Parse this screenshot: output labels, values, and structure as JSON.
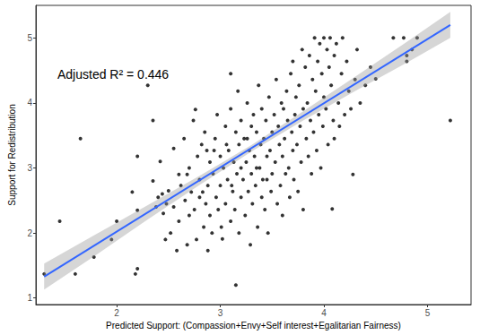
{
  "chart_data": {
    "type": "scatter",
    "annotation": "Adjusted R² = 0.446",
    "x_label": "Predicted Support: (Compassion+Envy+Self interest+Egalitarian Fairness)",
    "y_label": "Support for Redistribution",
    "xlim": [
      1.22,
      5.42
    ],
    "xticks": [
      2,
      3,
      4,
      5
    ],
    "ylim": [
      0.9,
      5.5
    ],
    "yticks": [
      1,
      2,
      3,
      4,
      5
    ],
    "grid": false,
    "series": [
      {
        "type": "scatter",
        "color": "#000000",
        "marker": "circle",
        "x": [
          1.3,
          1.45,
          1.6,
          1.65,
          1.78,
          1.95,
          2.0,
          2.15,
          2.2,
          2.2,
          2.18,
          2.2,
          2.3,
          2.35,
          2.38,
          2.35,
          2.4,
          2.42,
          2.45,
          2.48,
          2.5,
          2.52,
          2.55,
          2.55,
          2.58,
          2.6,
          2.6,
          2.62,
          2.44,
          2.47,
          2.65,
          2.66,
          2.68,
          2.7,
          2.7,
          2.72,
          2.74,
          2.75,
          2.77,
          2.78,
          2.8,
          2.8,
          2.82,
          2.84,
          2.85,
          2.86,
          2.88,
          2.88,
          2.9,
          2.9,
          2.68,
          2.76,
          2.83,
          2.87,
          2.92,
          2.93,
          2.95,
          2.96,
          2.97,
          2.98,
          3.0,
          3.0,
          3.02,
          3.03,
          3.05,
          3.05,
          3.07,
          3.08,
          3.1,
          3.1,
          3.1,
          3.12,
          3.13,
          3.14,
          3.15,
          3.15,
          3.16,
          3.18,
          3.18,
          3.2,
          3.2,
          3.2,
          2.94,
          3.01,
          3.06,
          3.11,
          3.17,
          3.22,
          3.23,
          3.24,
          3.25,
          3.26,
          3.27,
          3.28,
          3.29,
          3.3,
          3.3,
          3.31,
          3.32,
          3.33,
          3.34,
          3.35,
          3.36,
          3.37,
          3.38,
          3.39,
          3.4,
          3.4,
          3.41,
          3.42,
          3.43,
          3.44,
          3.45,
          3.46,
          3.47,
          3.48,
          3.49,
          3.5,
          3.5,
          3.26,
          3.35,
          3.45,
          3.52,
          3.53,
          3.54,
          3.55,
          3.56,
          3.57,
          3.58,
          3.59,
          3.6,
          3.6,
          3.61,
          3.62,
          3.63,
          3.64,
          3.65,
          3.66,
          3.67,
          3.68,
          3.69,
          3.7,
          3.7,
          3.71,
          3.72,
          3.73,
          3.74,
          3.75,
          3.76,
          3.77,
          3.78,
          3.79,
          3.8,
          3.8,
          3.82,
          3.83,
          3.84,
          3.85,
          3.86,
          3.87,
          3.88,
          3.89,
          3.9,
          3.91,
          3.92,
          3.93,
          3.94,
          3.95,
          3.96,
          3.97,
          3.98,
          3.99,
          4.0,
          4.0,
          4.02,
          4.03,
          4.04,
          4.05,
          4.06,
          4.07,
          4.08,
          4.09,
          4.1,
          4.1,
          4.12,
          4.14,
          4.15,
          4.17,
          4.18,
          4.2,
          4.22,
          4.24,
          4.26,
          4.28,
          4.3,
          4.32,
          4.35,
          4.4,
          4.45,
          4.5,
          4.67,
          4.77,
          4.8,
          4.8,
          4.9,
          5.22,
          4.85
        ],
        "values": [
          1.37,
          2.18,
          1.37,
          3.45,
          1.63,
          1.9,
          2.18,
          2.63,
          2.35,
          1.45,
          1.37,
          3.18,
          4.27,
          3.73,
          2.4,
          2.8,
          2.55,
          3.1,
          2.3,
          2.45,
          2.65,
          2.0,
          3.3,
          2.4,
          1.73,
          2.9,
          2.18,
          2.73,
          2.6,
          1.9,
          3.45,
          2.5,
          1.82,
          2.27,
          3.0,
          2.63,
          3.73,
          2.36,
          1.9,
          3.18,
          2.55,
          2.82,
          3.36,
          2.09,
          3.55,
          2.45,
          2.73,
          1.73,
          3.09,
          2.27,
          2.9,
          3.9,
          2.63,
          3.27,
          2.0,
          2.91,
          3.45,
          2.55,
          3.82,
          2.36,
          3.18,
          2.73,
          1.91,
          3.0,
          2.45,
          3.64,
          2.82,
          3.27,
          2.18,
          3.91,
          4.45,
          2.64,
          3.09,
          2.36,
          1.2,
          3.55,
          2.91,
          3.36,
          2.0,
          3.73,
          2.55,
          3.0,
          3.27,
          2.09,
          3.36,
          2.73,
          4.18,
          2.82,
          3.45,
          2.27,
          3.09,
          4.0,
          2.64,
          3.27,
          1.82,
          3.64,
          2.91,
          2.45,
          3.82,
          3.18,
          2.73,
          3.55,
          2.09,
          4.27,
          3.0,
          3.36,
          2.55,
          3.91,
          2.82,
          3.45,
          2.36,
          3.73,
          3.18,
          2.0,
          4.09,
          3.27,
          2.64,
          3.55,
          2.91,
          3.45,
          3.0,
          2.82,
          3.82,
          3.09,
          4.36,
          2.45,
          3.64,
          3.36,
          2.73,
          4.0,
          3.18,
          2.27,
          3.91,
          3.45,
          2.91,
          4.18,
          3.73,
          3.0,
          2.55,
          4.45,
          3.55,
          3.27,
          4.64,
          2.82,
          3.82,
          4.09,
          3.36,
          2.64,
          4.27,
          3.64,
          3.09,
          4.82,
          3.91,
          2.36,
          4.55,
          3.45,
          4.0,
          3.18,
          4.73,
          3.73,
          2.91,
          4.36,
          3.55,
          5.0,
          4.18,
          3.27,
          4.64,
          3.82,
          4.91,
          3.0,
          4.45,
          3.64,
          5.0,
          4.09,
          3.91,
          4.82,
          3.36,
          4.55,
          5.0,
          4.27,
          2.37,
          3.73,
          4.73,
          3.45,
          4.91,
          4.0,
          3.64,
          4.45,
          5.0,
          3.82,
          4.64,
          4.18,
          3.91,
          2.9,
          4.36,
          4.82,
          4.0,
          4.27,
          4.55,
          4.37,
          5.0,
          5.0,
          4.73,
          4.64,
          5.0,
          3.73,
          4.82
        ]
      },
      {
        "type": "band",
        "color": "#999999",
        "x": [
          1.3,
          1.8,
          2.3,
          2.8,
          3.3,
          3.8,
          4.3,
          4.8,
          5.22
        ],
        "lower": [
          1.13,
          1.66,
          2.21,
          2.74,
          3.25,
          3.73,
          4.18,
          4.62,
          5.0
        ],
        "upper": [
          1.53,
          1.98,
          2.43,
          2.88,
          3.35,
          3.87,
          4.4,
          4.94,
          5.4
        ]
      },
      {
        "type": "line",
        "color": "#3366ff",
        "x": [
          1.3,
          5.22
        ],
        "values": [
          1.33,
          5.2
        ]
      }
    ]
  }
}
